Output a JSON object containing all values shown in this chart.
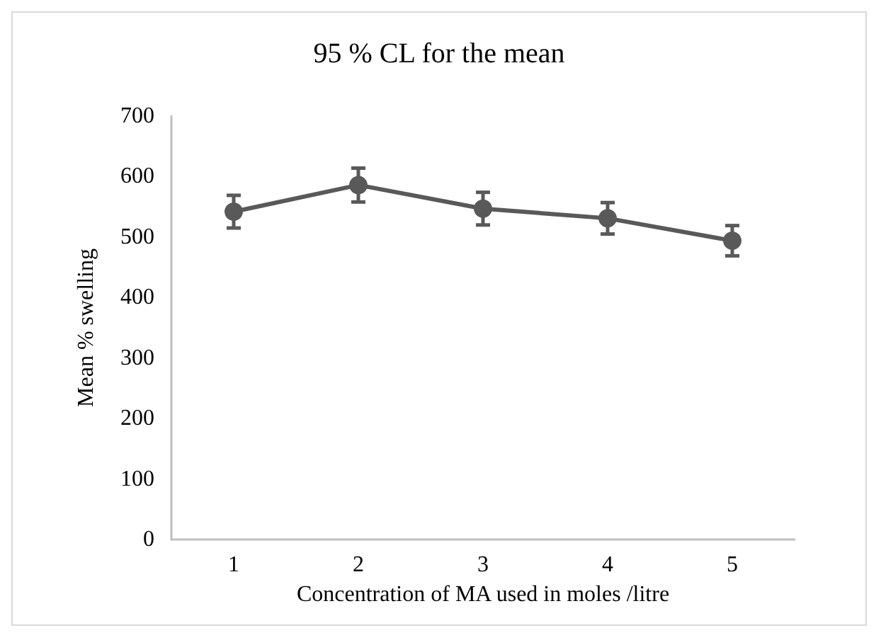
{
  "chart_data": {
    "type": "line",
    "title": "95 % CL for the mean",
    "xlabel": "Concentration of MA used in moles /litre",
    "ylabel": "Mean % swelling",
    "categories": [
      "1",
      "2",
      "3",
      "4",
      "5"
    ],
    "series": [
      {
        "color": "#595959",
        "values": [
          542,
          586,
          547,
          531,
          494
        ],
        "errors": [
          27,
          28,
          27,
          26,
          25
        ]
      }
    ],
    "ylim": [
      0,
      700
    ],
    "yticks": [
      0,
      100,
      200,
      300,
      400,
      500,
      600,
      700
    ],
    "grid": false,
    "marker": "circle",
    "line_style": "solid"
  }
}
